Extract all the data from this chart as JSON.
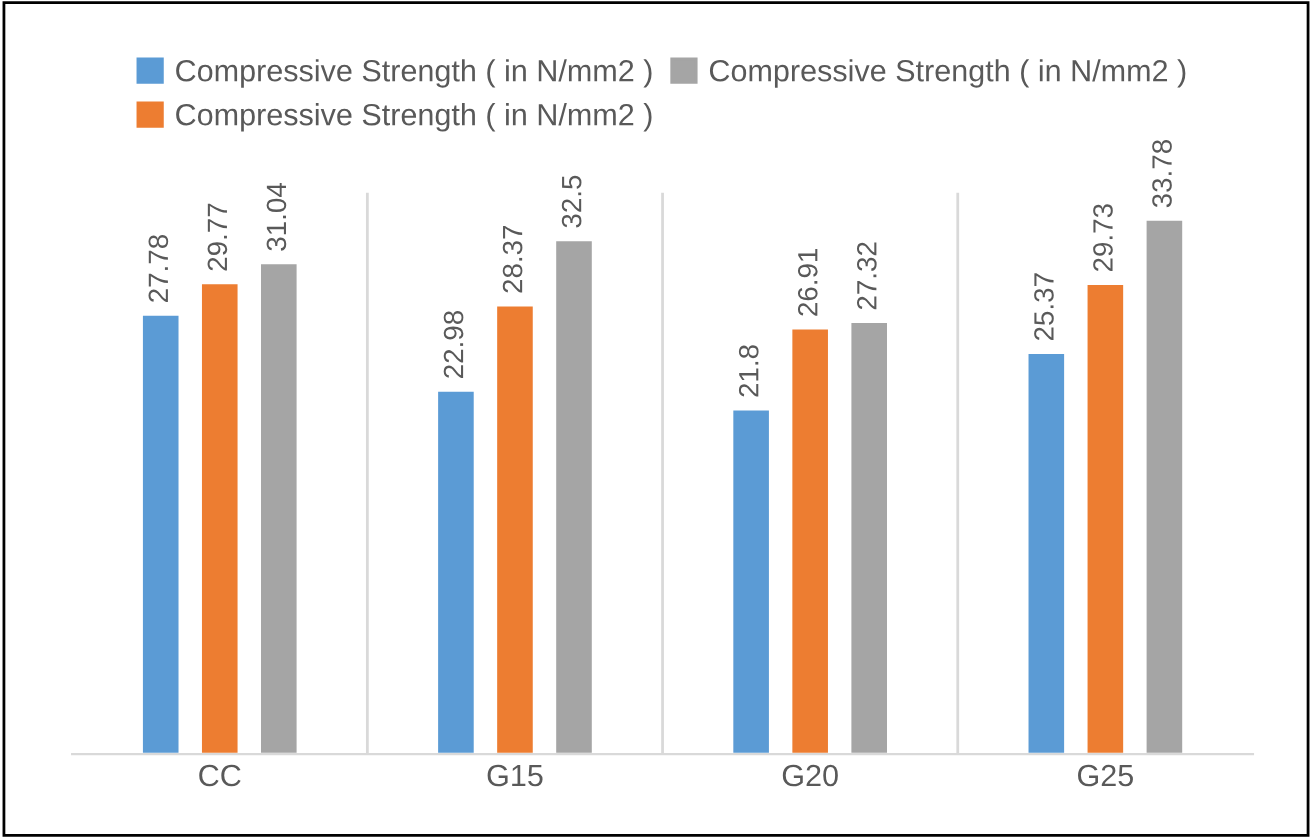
{
  "chart_data": {
    "type": "bar",
    "categories": [
      "CC",
      "G15",
      "G20",
      "G25"
    ],
    "series": [
      {
        "name": "Compressive Strength ( in N/mm2 )",
        "color": "#5b9bd5",
        "values": [
          27.78,
          22.98,
          21.8,
          25.37
        ]
      },
      {
        "name": "Compressive Strength ( in N/mm2 )",
        "color": "#ed7d31",
        "values": [
          29.77,
          28.37,
          26.91,
          29.73
        ]
      },
      {
        "name": "Compressive Strength ( in N/mm2 )",
        "color": "#a5a5a5",
        "values": [
          31.04,
          32.5,
          27.32,
          33.78
        ]
      }
    ],
    "data_labels": true,
    "grid": "x",
    "legend": "top",
    "tick_labels": "x"
  }
}
